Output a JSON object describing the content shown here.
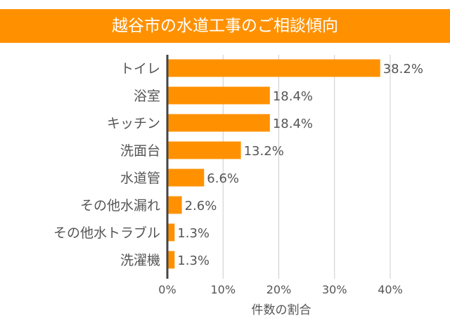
{
  "colors": {
    "bar": "#FF9100",
    "title_bg": "#FF9100",
    "grid": "#cccccc",
    "axis": "#444444"
  },
  "chart_data": {
    "type": "bar",
    "orientation": "horizontal",
    "title": "越谷市の水道工事のご相談傾向",
    "xlabel": "件数の割合",
    "ylabel": "",
    "categories": [
      "トイレ",
      "浴室",
      "キッチン",
      "洗面台",
      "水道管",
      "その他水漏れ",
      "その他水トラブル",
      "洗濯機"
    ],
    "values": [
      38.2,
      18.4,
      18.4,
      13.2,
      6.6,
      2.6,
      1.3,
      1.3
    ],
    "data_labels": [
      "38.2%",
      "18.4%",
      "18.4%",
      "13.2%",
      "6.6%",
      "2.6%",
      "1.3%",
      "1.3%"
    ],
    "xlim": [
      0,
      40
    ],
    "xticks": [
      "0%",
      "10%",
      "20%",
      "30%",
      "40%"
    ],
    "grid": true,
    "legend": "none"
  }
}
